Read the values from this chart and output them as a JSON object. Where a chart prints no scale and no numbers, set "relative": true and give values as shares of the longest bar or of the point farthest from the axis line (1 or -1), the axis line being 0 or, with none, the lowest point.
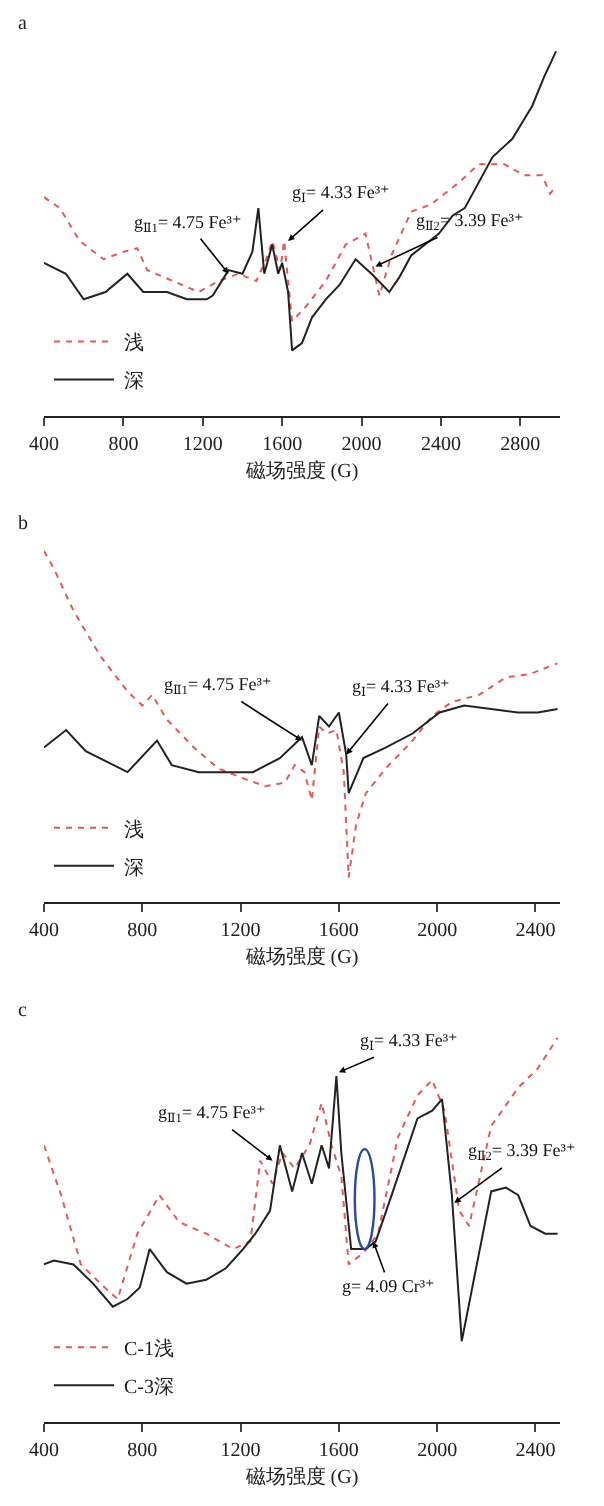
{
  "chart_data": [
    {
      "type": "line",
      "title": "a",
      "xlabel": "磁场强度 (G)",
      "relative": true,
      "legend": "bottom left",
      "xlim": [
        400,
        3000
      ],
      "xticks": [
        400,
        800,
        1200,
        1600,
        2000,
        2400,
        2800
      ],
      "series": [
        {
          "name": "浅",
          "color": "#e05a5a",
          "line_style": "dotted",
          "x": [
            400,
            480,
            580,
            700,
            800,
            870,
            920,
            1050,
            1180,
            1280,
            1380,
            1470,
            1520,
            1550,
            1590,
            1610,
            1650,
            1720,
            1820,
            1920,
            2020,
            2090,
            2150,
            2250,
            2350,
            2490,
            2590,
            2720,
            2820,
            2910,
            2950,
            2980
          ],
          "values": [
            0.6,
            0.57,
            0.48,
            0.43,
            0.45,
            0.46,
            0.4,
            0.37,
            0.34,
            0.37,
            0.39,
            0.37,
            0.43,
            0.48,
            0.4,
            0.48,
            0.26,
            0.3,
            0.37,
            0.47,
            0.5,
            0.33,
            0.44,
            0.56,
            0.58,
            0.64,
            0.69,
            0.69,
            0.66,
            0.66,
            0.61,
            0.63
          ]
        },
        {
          "name": "深",
          "color": "#222222",
          "line_style": "solid",
          "x": [
            400,
            510,
            600,
            710,
            820,
            900,
            1020,
            1120,
            1220,
            1250,
            1330,
            1400,
            1450,
            1480,
            1510,
            1550,
            1580,
            1600,
            1630,
            1650,
            1700,
            1750,
            1820,
            1890,
            1970,
            2050,
            2140,
            2190,
            2250,
            2320,
            2390,
            2460,
            2520,
            2660,
            2760,
            2860,
            2920,
            2980
          ],
          "values": [
            0.42,
            0.39,
            0.32,
            0.34,
            0.39,
            0.34,
            0.34,
            0.32,
            0.32,
            0.33,
            0.4,
            0.39,
            0.45,
            0.57,
            0.39,
            0.47,
            0.39,
            0.42,
            0.34,
            0.18,
            0.2,
            0.27,
            0.32,
            0.36,
            0.43,
            0.39,
            0.34,
            0.38,
            0.44,
            0.47,
            0.5,
            0.55,
            0.57,
            0.71,
            0.76,
            0.85,
            0.93,
            1
          ]
        }
      ],
      "annotations": [
        {
          "text": "g$_{Ⅱ1}$= 4.75 Fe³⁺",
          "x": 1330,
          "y": 0.39
        },
        {
          "text": "g$_{Ⅰ}$= 4.33 Fe³⁺",
          "x": 1630,
          "y": 0.48
        },
        {
          "text": "g$_{Ⅱ2}$= 3.39 Fe³⁺",
          "x": 2070,
          "y": 0.41
        }
      ]
    },
    {
      "type": "line",
      "title": "b",
      "xlabel": "磁场强度 (G)",
      "relative": true,
      "legend": "bottom left",
      "xlim": [
        400,
        2500
      ],
      "xticks": [
        400,
        800,
        1200,
        1600,
        2000,
        2400
      ],
      "series": [
        {
          "name": "浅",
          "color": "#e05a5a",
          "line_style": "dotted",
          "x": [
            400,
            440,
            520,
            630,
            740,
            800,
            840,
            900,
            1010,
            1110,
            1220,
            1300,
            1380,
            1420,
            1460,
            1490,
            1520,
            1550,
            1590,
            1620,
            1640,
            1670,
            1710,
            1790,
            1900,
            1980,
            2060,
            2170,
            2280,
            2380,
            2490
          ],
          "values": [
            1,
            0.95,
            0.83,
            0.7,
            0.6,
            0.56,
            0.59,
            0.52,
            0.44,
            0.38,
            0.35,
            0.33,
            0.34,
            0.39,
            0.37,
            0.29,
            0.5,
            0.48,
            0.49,
            0.37,
            0.07,
            0.22,
            0.31,
            0.38,
            0.46,
            0.53,
            0.57,
            0.59,
            0.64,
            0.65,
            0.68
          ]
        },
        {
          "name": "深",
          "color": "#222222",
          "line_style": "solid",
          "x": [
            400,
            490,
            570,
            740,
            860,
            920,
            1030,
            1140,
            1250,
            1360,
            1450,
            1490,
            1520,
            1560,
            1600,
            1630,
            1640,
            1700,
            1790,
            1900,
            2010,
            2110,
            2220,
            2330,
            2410,
            2490
          ],
          "values": [
            0.44,
            0.49,
            0.43,
            0.37,
            0.46,
            0.39,
            0.37,
            0.37,
            0.37,
            0.41,
            0.47,
            0.39,
            0.53,
            0.5,
            0.54,
            0.42,
            0.31,
            0.41,
            0.44,
            0.48,
            0.54,
            0.56,
            0.55,
            0.54,
            0.54,
            0.55
          ]
        }
      ],
      "annotations": [
        {
          "text": "g$_{Ⅱ1}$= 4.75 Fe³⁺",
          "x": 1450,
          "y": 0.46
        },
        {
          "text": "g$_{Ⅰ}$= 4.33 Fe³⁺",
          "x": 1630,
          "y": 0.42
        }
      ]
    },
    {
      "type": "line",
      "title": "c",
      "xlabel": "磁场强度 (G)",
      "relative": true,
      "legend": "bottom left",
      "xlim": [
        400,
        2500
      ],
      "xticks": [
        400,
        800,
        1200,
        1600,
        2000,
        2400
      ],
      "series": [
        {
          "name": "C-1浅",
          "color": "#e05a5a",
          "line_style": "dotted",
          "x": [
            400,
            470,
            550,
            630,
            700,
            780,
            870,
            950,
            1060,
            1170,
            1240,
            1280,
            1330,
            1370,
            1420,
            1480,
            1530,
            1570,
            1610,
            1640,
            1700,
            1760,
            1840,
            1920,
            1980,
            2030,
            2090,
            2130,
            2220,
            2330,
            2410,
            2490
          ],
          "values": [
            0.72,
            0.59,
            0.41,
            0.36,
            0.32,
            0.49,
            0.59,
            0.52,
            0.49,
            0.45,
            0.47,
            0.68,
            0.62,
            0.7,
            0.66,
            0.72,
            0.83,
            0.72,
            0.64,
            0.41,
            0.44,
            0.49,
            0.74,
            0.85,
            0.89,
            0.81,
            0.55,
            0.51,
            0.77,
            0.87,
            0.92,
            1
          ]
        },
        {
          "name": "C-3深",
          "color": "#222222",
          "line_style": "solid",
          "x": [
            400,
            440,
            520,
            600,
            680,
            740,
            790,
            830,
            900,
            980,
            1060,
            1140,
            1210,
            1260,
            1320,
            1360,
            1410,
            1450,
            1490,
            1530,
            1560,
            1590,
            1610,
            1650,
            1710,
            1750,
            1820,
            1920,
            1980,
            2020,
            2060,
            2100,
            2140,
            2220,
            2280,
            2330,
            2380,
            2440,
            2490
          ],
          "values": [
            0.41,
            0.42,
            0.41,
            0.36,
            0.3,
            0.32,
            0.35,
            0.45,
            0.39,
            0.36,
            0.37,
            0.4,
            0.45,
            0.49,
            0.55,
            0.72,
            0.6,
            0.7,
            0.62,
            0.72,
            0.66,
            0.9,
            0.7,
            0.45,
            0.45,
            0.47,
            0.6,
            0.79,
            0.81,
            0.84,
            0.59,
            0.21,
            0.34,
            0.6,
            0.61,
            0.59,
            0.51,
            0.49,
            0.49
          ]
        }
      ],
      "annotations": [
        {
          "text": "g$_{Ⅱ1}$= 4.75 Fe³⁺",
          "x": 1330,
          "y": 0.68
        },
        {
          "text": "g$_{Ⅰ}$= 4.33 Fe³⁺",
          "x": 1600,
          "y": 0.91
        },
        {
          "text": "g$_{Ⅱ2}$= 3.39 Fe³⁺",
          "x": 2070,
          "y": 0.57
        },
        {
          "text": "g= 4.09 Cr³⁺",
          "x": 1740,
          "y": 0.47
        }
      ]
    }
  ]
}
